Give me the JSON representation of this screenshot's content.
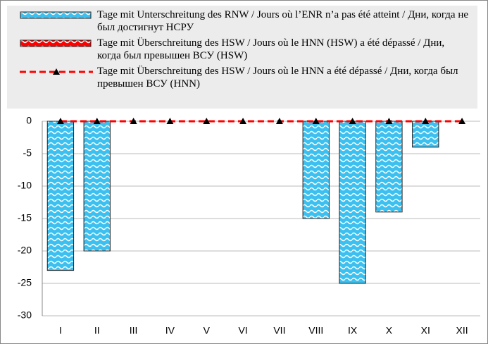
{
  "chart_data": {
    "type": "bar",
    "categories": [
      "I",
      "II",
      "III",
      "IV",
      "V",
      "VI",
      "VII",
      "VIII",
      "IX",
      "X",
      "XI",
      "XII"
    ],
    "series": [
      {
        "name": "Tage mit Unterschreitung des RNW / Jours où l’ENR n’a pas été atteint / Дни, когда не был достигнут НСРУ",
        "color": "#3cc0f0",
        "type": "bar",
        "values": [
          -23,
          -20,
          0,
          0,
          0,
          0,
          0,
          -15,
          -25,
          -14,
          -4,
          0
        ]
      },
      {
        "name": "Tage mit Überschreitung des HSW / Jours où le HNN (HSW) a été dépassé / Дни, когда был превышен ВСУ (HSW)",
        "color": "#ff0000",
        "type": "bar",
        "values": [
          0,
          0,
          0,
          0,
          0,
          0,
          0,
          0,
          0,
          0,
          0,
          0
        ]
      },
      {
        "name": "Tage mit Überschreitung des HSW / Jours où le HNN a été dépassé / Дни, когда был превышен ВСУ (HNN)",
        "color": "#ff0000",
        "type": "line",
        "values": [
          0,
          0,
          0,
          0,
          0,
          0,
          0,
          0,
          0,
          0,
          0,
          0
        ]
      }
    ],
    "ylim": [
      -30,
      0
    ],
    "yticks": [
      0,
      -5,
      -10,
      -15,
      -20,
      -25,
      -30
    ],
    "grid": true,
    "legend": "top"
  }
}
